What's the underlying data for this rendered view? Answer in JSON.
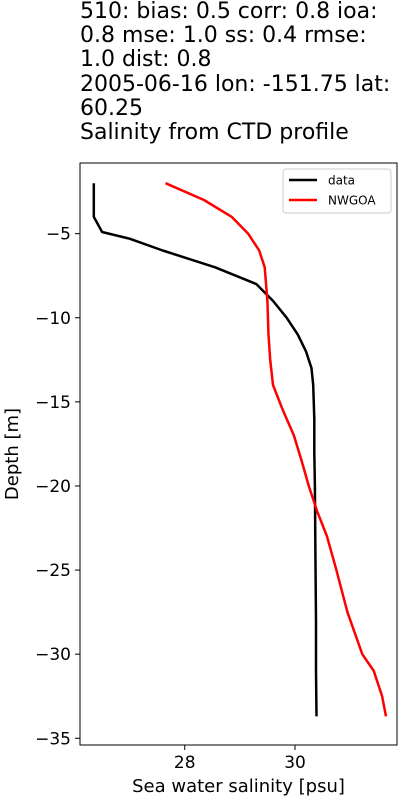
{
  "header": {
    "stats_line": "510: bias: 0.5  corr: 0.8  ioa: 0.8  mse: 1.0  ss: 0.4  rmse: 1.0  dist: 0.8",
    "location_line": "2005-06-16 lon: -151.75 lat: 60.25",
    "title": "Salinity from CTD profile"
  },
  "chart_data": {
    "type": "line",
    "title": "Salinity from CTD profile",
    "xlabel": "Sea water salinity [psu]",
    "ylabel": "Depth [m]",
    "xlim": [
      26.1,
      31.85
    ],
    "ylim": [
      -35.4,
      -0.8
    ],
    "xticks": [
      28,
      30
    ],
    "yticks": [
      -5,
      -10,
      -15,
      -20,
      -25,
      -30,
      -35
    ],
    "xtick_labels": [
      "28",
      "30"
    ],
    "ytick_labels": [
      "−5",
      "−10",
      "−15",
      "−20",
      "−25",
      "−30",
      "−35"
    ],
    "grid": false,
    "legend": "top-right",
    "series": [
      {
        "name": "data",
        "color": "#000000",
        "x": [
          26.35,
          26.35,
          26.35,
          26.5,
          27.0,
          27.6,
          28.55,
          29.3,
          29.6,
          29.85,
          30.05,
          30.2,
          30.3,
          30.33,
          30.35,
          30.35,
          30.36,
          30.37,
          30.38,
          30.38,
          30.39
        ],
        "y": [
          -2,
          -3,
          -4,
          -4.9,
          -5.3,
          -6,
          -7,
          -8,
          -9,
          -10,
          -11,
          -12,
          -13,
          -14,
          -16,
          -18,
          -20,
          -24,
          -28,
          -31,
          -33.7
        ]
      },
      {
        "name": "NWGOA",
        "color": "#ff0000",
        "x": [
          27.65,
          28.35,
          28.85,
          29.15,
          29.35,
          29.45,
          29.5,
          29.52,
          29.55,
          29.6,
          29.78,
          29.98,
          30.12,
          30.25,
          30.4,
          30.58,
          30.75,
          30.95,
          31.22,
          31.43,
          31.58,
          31.65
        ],
        "y": [
          -2,
          -3,
          -4,
          -5,
          -6,
          -7,
          -9,
          -11,
          -12.5,
          -14,
          -15.5,
          -17,
          -18.5,
          -20,
          -21.5,
          -23,
          -25,
          -27.5,
          -30,
          -31,
          -32.5,
          -33.7
        ]
      }
    ]
  }
}
